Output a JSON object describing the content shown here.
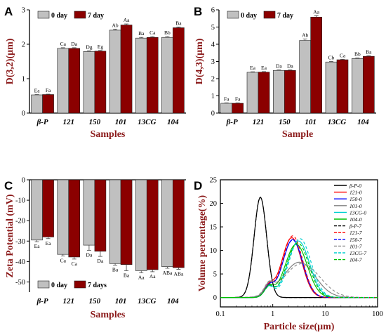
{
  "figure": {
    "panels": [
      "A",
      "B",
      "C",
      "D"
    ]
  },
  "chart_data": [
    {
      "panel": "A",
      "type": "bar",
      "xlabel": "Samples",
      "ylabel": "D(3,2)(μm)",
      "ylim": [
        0,
        3
      ],
      "yticks": [
        "0",
        "1",
        "2",
        "3"
      ],
      "categories": [
        "β-P",
        "121",
        "150",
        "101",
        "13CG",
        "104"
      ],
      "legend_position": "top-left",
      "colors": [
        "#c0c0c0",
        "#8b0000"
      ],
      "series": [
        {
          "name": "0 day",
          "values": [
            0.53,
            1.88,
            1.79,
            2.41,
            2.18,
            2.2
          ],
          "errors": [
            0.01,
            0.02,
            0.02,
            0.03,
            0.02,
            0.02
          ],
          "labels": [
            "Ea",
            "Ca",
            "Dg",
            "Ab",
            "Ba",
            "Bb"
          ]
        },
        {
          "name": "7 day",
          "values": [
            0.54,
            1.88,
            1.8,
            2.56,
            2.2,
            2.48
          ],
          "errors": [
            0.01,
            0.02,
            0.02,
            0.03,
            0.02,
            0.02
          ],
          "labels": [
            "Fa",
            "Da",
            "Eg",
            "Aa",
            "Ca",
            "Ba"
          ]
        }
      ]
    },
    {
      "panel": "B",
      "type": "bar",
      "xlabel": "Sample",
      "ylabel": "D(4,3)(μm)",
      "ylim": [
        0,
        6
      ],
      "yticks": [
        "0",
        "1",
        "2",
        "3",
        "4",
        "5",
        "6"
      ],
      "categories": [
        "β-P",
        "121",
        "150",
        "101",
        "13CG",
        "104"
      ],
      "legend_position": "top-left",
      "colors": [
        "#c0c0c0",
        "#8b0000"
      ],
      "series": [
        {
          "name": "0 day",
          "values": [
            0.57,
            2.37,
            2.48,
            4.22,
            2.97,
            3.17
          ],
          "errors": [
            0.02,
            0.03,
            0.03,
            0.08,
            0.03,
            0.03
          ],
          "labels": [
            "Fa",
            "Ea",
            "Da",
            "Ab",
            "Cb",
            "Bb"
          ]
        },
        {
          "name": "7 day",
          "values": [
            0.57,
            2.38,
            2.48,
            5.58,
            3.1,
            3.3
          ],
          "errors": [
            0.02,
            0.03,
            0.03,
            0.08,
            0.03,
            0.03
          ],
          "labels": [
            "Fa",
            "Ea",
            "Da",
            "Aa",
            "Ca",
            "Ba"
          ]
        }
      ]
    },
    {
      "panel": "C",
      "type": "bar",
      "xlabel": "Samples",
      "ylabel": "Zeta Potential (mV)",
      "ylim": [
        -55,
        0
      ],
      "yticks": [
        "0",
        "-10",
        "-20",
        "-30",
        "-40",
        "-50"
      ],
      "categories": [
        "β-P",
        "121",
        "150",
        "101",
        "13CG",
        "104"
      ],
      "legend_position": "bottom-left",
      "colors": [
        "#c0c0c0",
        "#8b0000"
      ],
      "series": [
        {
          "name": "0 day",
          "values": [
            -29.5,
            -36.5,
            -32.0,
            -41.0,
            -44.5,
            -42.5
          ],
          "errors": [
            0.8,
            0.8,
            2.5,
            0.8,
            1.0,
            0.8
          ],
          "labels": [
            "Ea",
            "Ca",
            "Da",
            "Ba",
            "Aa",
            "ABa"
          ]
        },
        {
          "name": "7 days",
          "values": [
            -28.0,
            -37.8,
            -35.0,
            -41.5,
            -44.0,
            -43.0
          ],
          "errors": [
            0.8,
            1.0,
            2.5,
            3.0,
            1.0,
            0.8
          ],
          "labels": [
            "Ea",
            "Ca",
            "Da",
            "Ba",
            "Aa",
            "ABa"
          ]
        }
      ]
    },
    {
      "panel": "D",
      "type": "line",
      "xlabel": "Particle size(μm)",
      "ylabel": "Volume percentage(%)",
      "xscale": "log",
      "xlim": [
        0.1,
        100
      ],
      "ylim": [
        -2,
        25
      ],
      "xticks": [
        "0.1",
        "1",
        "10",
        "100"
      ],
      "yticks": [
        "0",
        "5",
        "10",
        "15",
        "20",
        "25"
      ],
      "legend_position": "top-right",
      "series": [
        {
          "name": "β-P-0",
          "color": "#000000",
          "dash": false,
          "peak": 0.58,
          "height": 21.3,
          "sigma": 0.12,
          "shoulder": 0
        },
        {
          "name": "121-0",
          "color": "#ff0000",
          "dash": false,
          "peak": 2.3,
          "height": 12.7,
          "sigma": 0.19,
          "shoulder": 1
        },
        {
          "name": "150-0",
          "color": "#0000ff",
          "dash": false,
          "peak": 2.4,
          "height": 12.3,
          "sigma": 0.19,
          "shoulder": 1
        },
        {
          "name": "101-0",
          "color": "#808080",
          "dash": false,
          "peak": 3.2,
          "height": 7.5,
          "sigma": 0.3,
          "shoulder": 1
        },
        {
          "name": "13CG-0",
          "color": "#00d0d0",
          "dash": false,
          "peak": 3.1,
          "height": 12.0,
          "sigma": 0.21,
          "shoulder": 1
        },
        {
          "name": "104-0",
          "color": "#00c000",
          "dash": false,
          "peak": 2.8,
          "height": 11.3,
          "sigma": 0.21,
          "shoulder": 1
        },
        {
          "name": "β-P-7",
          "color": "#000000",
          "dash": true,
          "peak": 0.58,
          "height": 21.3,
          "sigma": 0.12,
          "shoulder": 0
        },
        {
          "name": "121-7",
          "color": "#ff0000",
          "dash": true,
          "peak": 2.4,
          "height": 13.1,
          "sigma": 0.19,
          "shoulder": 1
        },
        {
          "name": "150-7",
          "color": "#0000ff",
          "dash": true,
          "peak": 2.4,
          "height": 12.2,
          "sigma": 0.19,
          "shoulder": 1
        },
        {
          "name": "101-7",
          "color": "#909090",
          "dash": true,
          "peak": 3.6,
          "height": 7.2,
          "sigma": 0.34,
          "shoulder": 1
        },
        {
          "name": "13CG-7",
          "color": "#00d0d0",
          "dash": true,
          "peak": 3.3,
          "height": 12.5,
          "sigma": 0.21,
          "shoulder": 1
        },
        {
          "name": "104-7",
          "color": "#00c000",
          "dash": true,
          "peak": 3.0,
          "height": 11.6,
          "sigma": 0.21,
          "shoulder": 1
        }
      ]
    }
  ]
}
